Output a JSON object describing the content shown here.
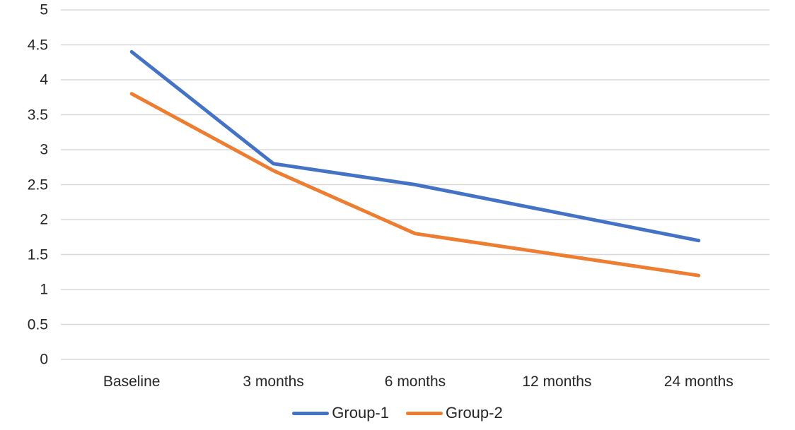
{
  "chart_data": {
    "type": "line",
    "title": "",
    "xlabel": "",
    "ylabel": "",
    "categories": [
      "Baseline",
      "3 months",
      "6 months",
      "12 months",
      "24 months"
    ],
    "series": [
      {
        "name": "Group-1",
        "color": "#4472C4",
        "values": [
          4.4,
          2.8,
          2.5,
          2.1,
          1.7
        ]
      },
      {
        "name": "Group-2",
        "color": "#ED7D31",
        "values": [
          3.8,
          2.7,
          1.8,
          1.5,
          1.2
        ]
      }
    ],
    "ylim": [
      0,
      5
    ],
    "ytick_step": 0.5,
    "ytick_labels": [
      "0",
      "0.5",
      "1",
      "1.5",
      "2",
      "2.5",
      "3",
      "3.5",
      "4",
      "4.5",
      "5"
    ],
    "grid": true,
    "legend_position": "bottom",
    "colors": {
      "gridline": "#D9D9D9",
      "text": "#262626",
      "background": "#FFFFFF"
    }
  }
}
